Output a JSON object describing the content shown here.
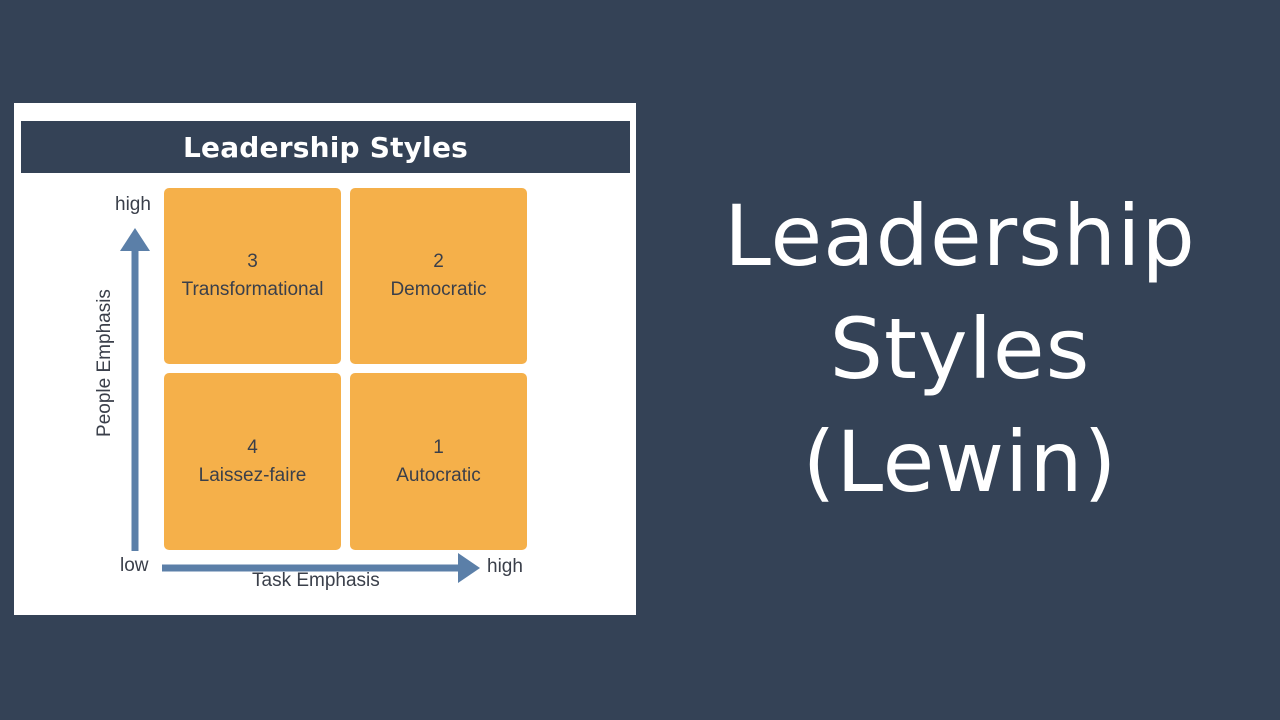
{
  "diagram": {
    "title": "Leadership Styles",
    "quadrants": [
      {
        "number": "3",
        "label": "Transformational"
      },
      {
        "number": "2",
        "label": "Democratic"
      },
      {
        "number": "4",
        "label": "Laissez-faire"
      },
      {
        "number": "1",
        "label": "Autocratic"
      }
    ],
    "y_axis": {
      "title": "People Emphasis",
      "high": "high",
      "low": "low"
    },
    "x_axis": {
      "title": "Task Emphasis",
      "high": "high"
    },
    "colors": {
      "header": "#344256",
      "quadrant": "#f5b04a",
      "arrow": "#5b7fa8",
      "text": "#3a3f4a"
    }
  },
  "slide": {
    "title_lines": [
      "Leadership",
      "Styles",
      "(Lewin)"
    ],
    "background": "#344256"
  }
}
